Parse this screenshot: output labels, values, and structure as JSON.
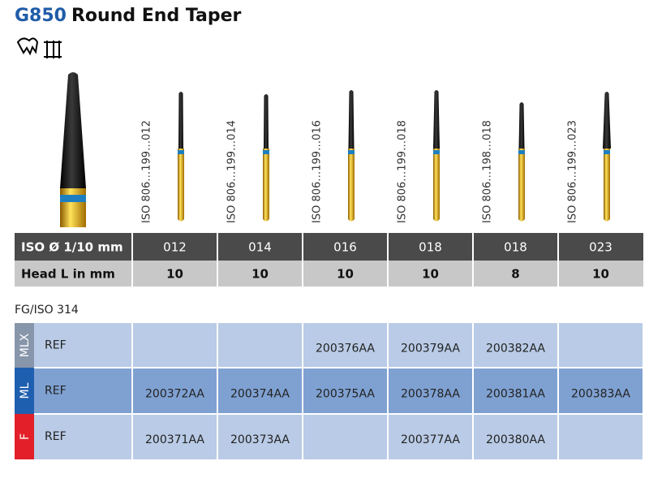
{
  "header": {
    "code": "G850",
    "title": "Round End Taper"
  },
  "burs": [
    {
      "iso": "ISO 806…199…012"
    },
    {
      "iso": "ISO 806…199…014"
    },
    {
      "iso": "ISO 806…199…016"
    },
    {
      "iso": "ISO 806…199…018"
    },
    {
      "iso": "ISO 806…198…018"
    },
    {
      "iso": "ISO 806…199…023"
    }
  ],
  "table": {
    "rows": [
      {
        "label": "ISO Ø 1/10 mm",
        "cells": [
          "012",
          "014",
          "016",
          "018",
          "018",
          "023"
        ]
      },
      {
        "label": "Head L in mm",
        "cells": [
          10,
          10,
          10,
          10,
          8,
          10
        ]
      }
    ]
  },
  "system": "FG/ISO 314",
  "references": [
    {
      "line": "MLX",
      "label": "REF",
      "cells": [
        null,
        null,
        "200376AA",
        "200379AA",
        "200382AA",
        null
      ]
    },
    {
      "line": "ML",
      "label": "REF",
      "cells": [
        "200372AA",
        "200374AA",
        "200375AA",
        "200378AA",
        "200381AA",
        "200383AA"
      ]
    },
    {
      "line": "F",
      "label": "REF",
      "cells": [
        "200371AA",
        "200373AA",
        null,
        "200377AA",
        "200380AA",
        null
      ]
    }
  ]
}
